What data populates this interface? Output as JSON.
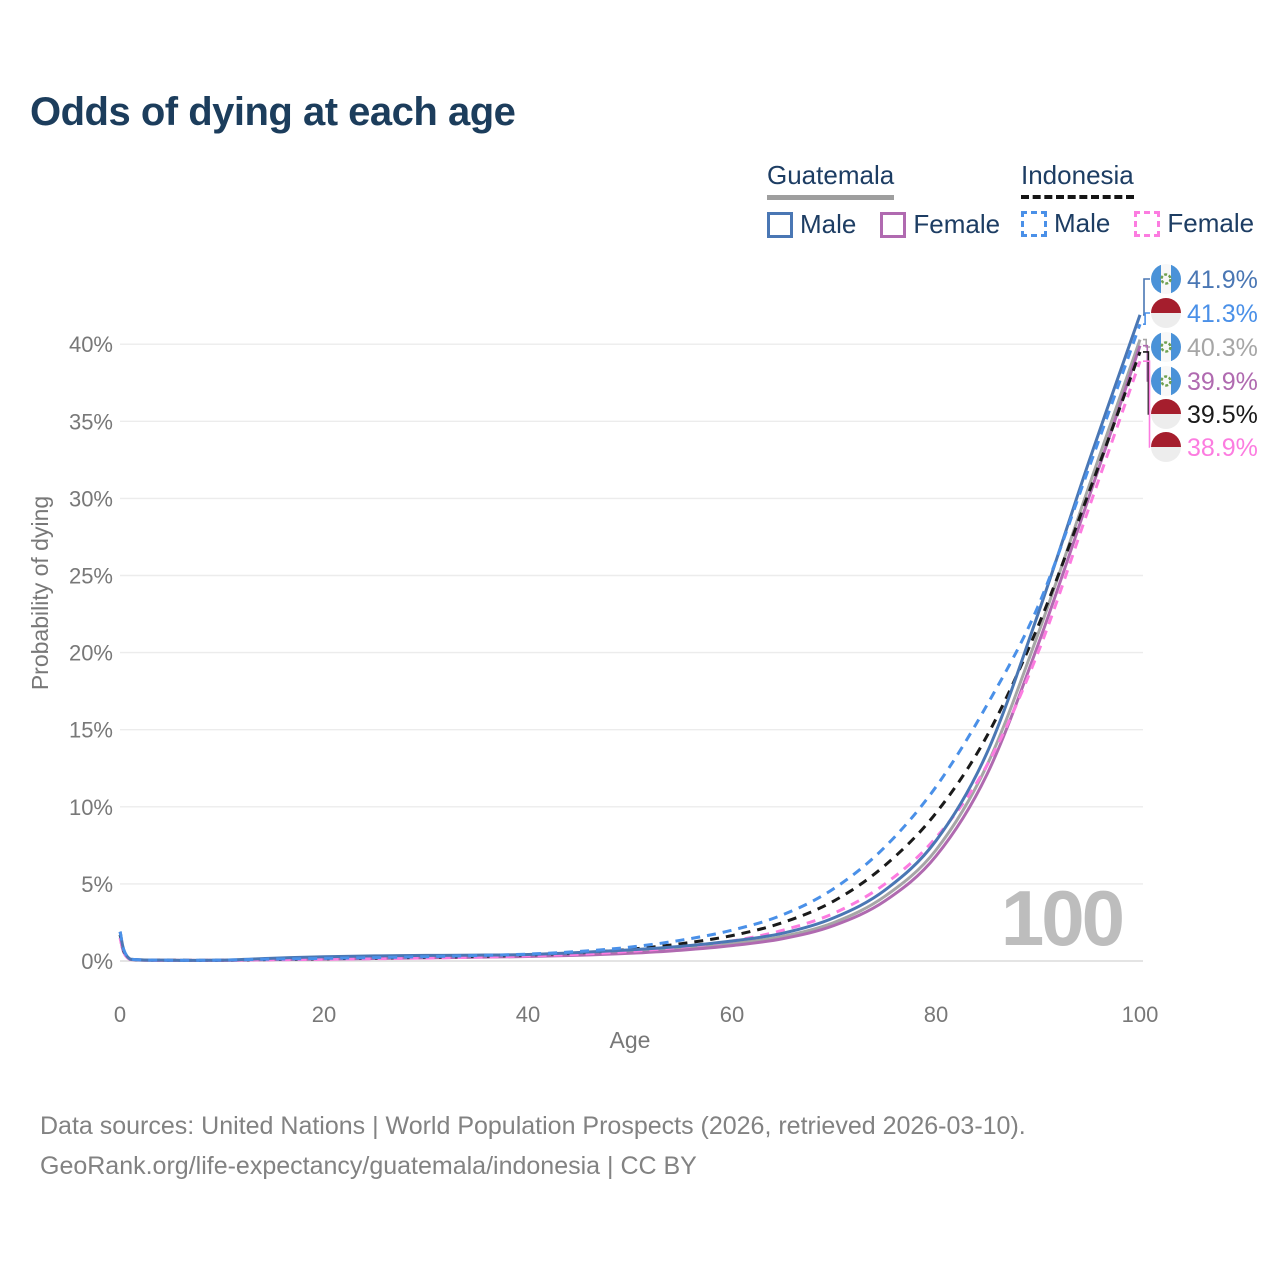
{
  "title": "Odds of dying at each age",
  "watermark_hover_age": "100",
  "colors": {
    "title_text": "#1c3d5c",
    "legend_text": "#1d3d63",
    "axis_text": "#787878",
    "grid": "#ececec",
    "grid_zero": "#dcdcdc",
    "watermark": "#bdbdbd",
    "footer_text": "#828282",
    "guatemala_underline": "#9e9e9e",
    "indonesia_underline": "#151515"
  },
  "legend": {
    "groups": [
      {
        "id": "guatemala",
        "label": "Guatemala",
        "line_style": "solid",
        "line_color": "#9e9e9e",
        "items": [
          {
            "label": "Male",
            "color": "#4a77b4"
          },
          {
            "label": "Female",
            "color": "#b06ab0"
          }
        ]
      },
      {
        "id": "indonesia",
        "label": "Indonesia",
        "line_style": "dashed",
        "line_color": "#151515",
        "items": [
          {
            "label": "Male",
            "color": "#4a90e8"
          },
          {
            "label": "Female",
            "color": "#fc7ce0"
          }
        ]
      }
    ]
  },
  "end_labels": [
    {
      "series": "gtm-male",
      "flag": "guatemala",
      "text": "41.9%",
      "value": 41.9,
      "color": "#4a77b4"
    },
    {
      "series": "idn-male",
      "flag": "indonesia",
      "text": "41.3%",
      "value": 41.3,
      "color": "#4a90e8"
    },
    {
      "series": "gtm-total",
      "flag": "guatemala",
      "text": "40.3%",
      "value": 40.3,
      "color": "#a6a6a6"
    },
    {
      "series": "gtm-female",
      "flag": "guatemala",
      "text": "39.9%",
      "value": 39.9,
      "color": "#b06ab0"
    },
    {
      "series": "idn-total",
      "flag": "indonesia",
      "text": "39.5%",
      "value": 39.5,
      "color": "#1a1a1a"
    },
    {
      "series": "idn-female",
      "flag": "indonesia",
      "text": "38.9%",
      "value": 38.9,
      "color": "#fc7ce0"
    }
  ],
  "footer": {
    "line1": "Data sources: United Nations | World Population Prospects (2026, retrieved 2026-03-10).",
    "line2": "GeoRank.org/life-expectancy/guatemala/indonesia | CC BY"
  },
  "chart_data": {
    "type": "line",
    "title": "Odds of dying at each age",
    "xlabel": "Age",
    "ylabel": "Probability of dying",
    "xlim": [
      0,
      100
    ],
    "ylim": [
      0,
      44
    ],
    "xticks": [
      0,
      20,
      40,
      60,
      80,
      100
    ],
    "yticks": [
      0,
      5,
      10,
      15,
      20,
      25,
      30,
      35,
      40
    ],
    "ytick_format": "percent",
    "grid": "horizontal",
    "legend_position": "top-right",
    "ages": [
      0,
      1,
      5,
      10,
      15,
      20,
      25,
      30,
      35,
      40,
      45,
      50,
      55,
      60,
      65,
      70,
      75,
      80,
      85,
      90,
      95,
      100
    ],
    "series": [
      {
        "id": "gtm-male",
        "name": "Guatemala Male",
        "color": "#4a77b4",
        "dashed": false,
        "values": [
          1.9,
          0.12,
          0.05,
          0.06,
          0.18,
          0.28,
          0.33,
          0.36,
          0.38,
          0.42,
          0.55,
          0.72,
          0.95,
          1.3,
          1.8,
          2.8,
          4.6,
          7.8,
          13.5,
          22.5,
          32.4,
          41.9
        ]
      },
      {
        "id": "idn-male",
        "name": "Indonesia Male",
        "color": "#4a90e8",
        "dashed": true,
        "values": [
          1.9,
          0.13,
          0.05,
          0.06,
          0.12,
          0.17,
          0.22,
          0.28,
          0.35,
          0.45,
          0.62,
          0.9,
          1.35,
          2.0,
          3.0,
          4.7,
          7.4,
          11.3,
          16.6,
          23.0,
          32.0,
          41.3
        ]
      },
      {
        "id": "gtm-total",
        "name": "Guatemala",
        "color": "#a6a6a6",
        "dashed": false,
        "values": [
          1.7,
          0.11,
          0.04,
          0.05,
          0.13,
          0.2,
          0.25,
          0.28,
          0.31,
          0.35,
          0.45,
          0.6,
          0.82,
          1.12,
          1.6,
          2.5,
          4.2,
          7.2,
          12.7,
          21.2,
          30.8,
          40.3
        ]
      },
      {
        "id": "gtm-female",
        "name": "Guatemala Female",
        "color": "#b06ab0",
        "dashed": false,
        "values": [
          1.5,
          0.1,
          0.04,
          0.04,
          0.09,
          0.12,
          0.16,
          0.2,
          0.24,
          0.29,
          0.37,
          0.5,
          0.7,
          1.0,
          1.45,
          2.3,
          3.9,
          6.8,
          12.1,
          20.5,
          30.1,
          39.9
        ]
      },
      {
        "id": "idn-total",
        "name": "Indonesia",
        "color": "#1a1a1a",
        "dashed": true,
        "values": [
          1.7,
          0.12,
          0.05,
          0.05,
          0.1,
          0.14,
          0.19,
          0.24,
          0.3,
          0.39,
          0.53,
          0.76,
          1.12,
          1.65,
          2.5,
          3.9,
          6.2,
          9.6,
          14.6,
          21.7,
          30.4,
          39.5
        ]
      },
      {
        "id": "idn-female",
        "name": "Indonesia Female",
        "color": "#fc7ce0",
        "dashed": true,
        "values": [
          1.5,
          0.11,
          0.04,
          0.05,
          0.08,
          0.11,
          0.15,
          0.19,
          0.25,
          0.33,
          0.44,
          0.62,
          0.9,
          1.3,
          2.0,
          3.1,
          5.0,
          8.0,
          12.7,
          20.0,
          29.4,
          38.9
        ]
      }
    ],
    "draw_order": [
      "gtm-total",
      "gtm-female",
      "idn-total",
      "idn-female",
      "gtm-male",
      "idn-male"
    ]
  }
}
